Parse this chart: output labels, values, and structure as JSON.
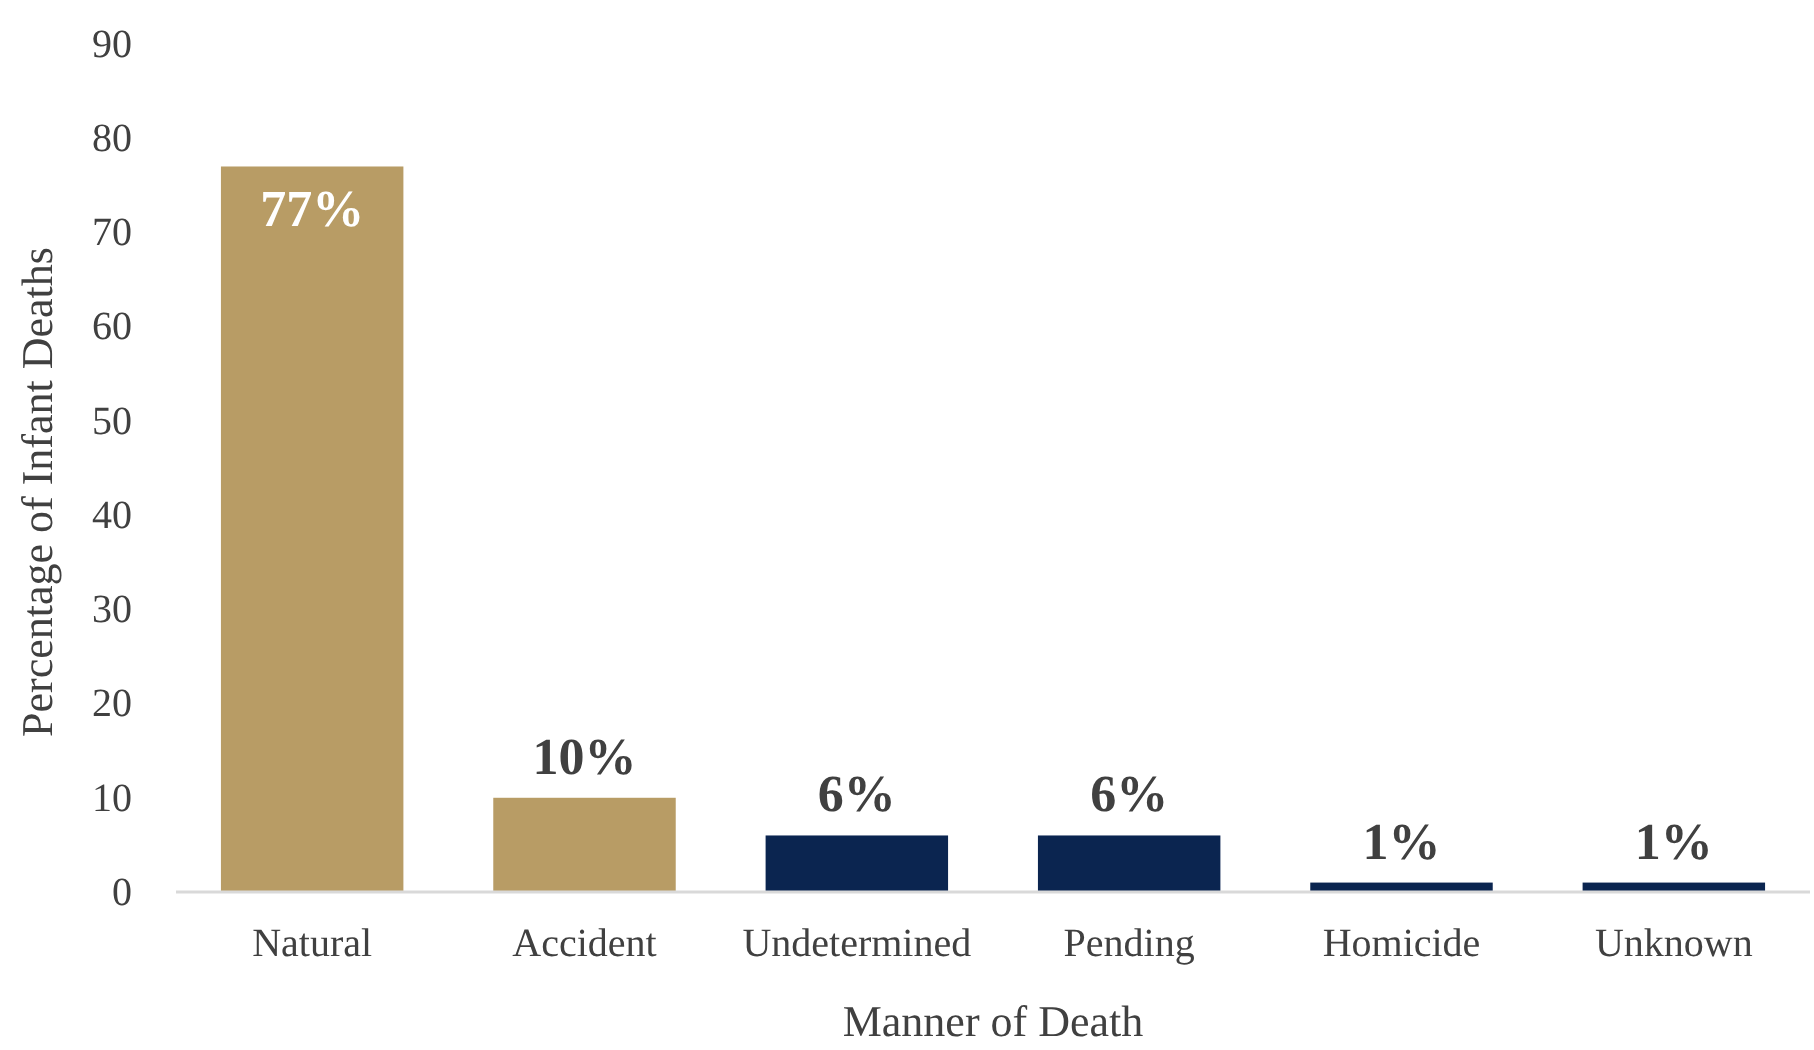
{
  "chart_data": {
    "type": "bar",
    "xlabel": "Manner of Death",
    "ylabel": "Percentage of Infant Deaths",
    "categories": [
      "Natural",
      "Accident",
      "Undetermined",
      "Pending",
      "Homicide",
      "Unknown"
    ],
    "values": [
      77,
      10,
      6,
      6,
      1,
      1
    ],
    "colors": [
      "#b89c65",
      "#b89c65",
      "#0b2550",
      "#0b2550",
      "#0b2550",
      "#0b2550"
    ],
    "value_labels": [
      "77%",
      "10%",
      "6%",
      "6%",
      "1%",
      "1%"
    ],
    "ylim": [
      0,
      90
    ],
    "yticks": [
      0,
      10,
      20,
      30,
      40,
      50,
      60,
      70,
      80,
      90
    ],
    "grid": false
  }
}
